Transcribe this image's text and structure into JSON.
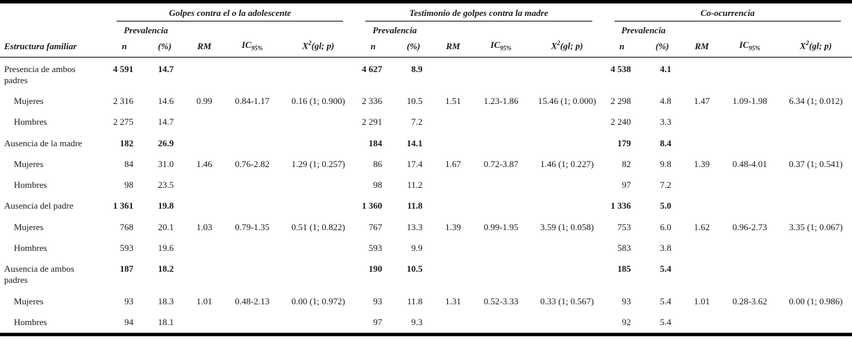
{
  "table": {
    "row_header": "Estructura familiar",
    "groups": [
      {
        "title": "Golpes contra el o la adolescente"
      },
      {
        "title": "Testimonio de golpes contra la madre"
      },
      {
        "title": "Co-ocurrencia"
      }
    ],
    "columns": {
      "prevalencia": "Prevalencia",
      "n": "n",
      "pct": "(%)",
      "rm": "RM",
      "ic": "IC",
      "ic_sub": "95%",
      "x2": "X",
      "x2_sup": "2",
      "x2_tail": "(gl; p)"
    },
    "rows": [
      {
        "label": "Presencia de ambos padres",
        "indent": false,
        "bold": true,
        "cells": [
          [
            "4 591",
            "14.7",
            "",
            "",
            ""
          ],
          [
            "4 627",
            "8.9",
            "",
            "",
            ""
          ],
          [
            "4 538",
            "4.1",
            "",
            "",
            ""
          ]
        ]
      },
      {
        "label": "Mujeres",
        "indent": true,
        "bold": false,
        "cells": [
          [
            "2 316",
            "14.6",
            "0.99",
            "0.84-1.17",
            "0.16 (1; 0.900)"
          ],
          [
            "2 336",
            "10.5",
            "1.51",
            "1.23-1.86",
            "15.46 (1; 0.000)"
          ],
          [
            "2 298",
            "4.8",
            "1.47",
            "1.09-1.98",
            "6.34 (1; 0.012)"
          ]
        ]
      },
      {
        "label": "Hombres",
        "indent": true,
        "bold": false,
        "cells": [
          [
            "2 275",
            "14.7",
            "",
            "",
            ""
          ],
          [
            "2 291",
            "7.2",
            "",
            "",
            ""
          ],
          [
            "2 240",
            "3.3",
            "",
            "",
            ""
          ]
        ]
      },
      {
        "label": "Ausencia de la madre",
        "indent": false,
        "bold": true,
        "cells": [
          [
            "182",
            "26.9",
            "",
            "",
            ""
          ],
          [
            "184",
            "14.1",
            "",
            "",
            ""
          ],
          [
            "179",
            "8.4",
            "",
            "",
            ""
          ]
        ]
      },
      {
        "label": "Mujeres",
        "indent": true,
        "bold": false,
        "cells": [
          [
            "84",
            "31.0",
            "1.46",
            "0.76-2.82",
            "1.29 (1; 0.257)"
          ],
          [
            "86",
            "17.4",
            "1.67",
            "0.72-3.87",
            "1.46 (1; 0.227)"
          ],
          [
            "82",
            "9.8",
            "1.39",
            "0.48-4.01",
            "0.37 (1; 0.541)"
          ]
        ]
      },
      {
        "label": "Hombres",
        "indent": true,
        "bold": false,
        "cells": [
          [
            "98",
            "23.5",
            "",
            "",
            ""
          ],
          [
            "98",
            "11.2",
            "",
            "",
            ""
          ],
          [
            "97",
            "7.2",
            "",
            "",
            ""
          ]
        ]
      },
      {
        "label": "Ausencia del padre",
        "indent": false,
        "bold": true,
        "cells": [
          [
            "1 361",
            "19.8",
            "",
            "",
            ""
          ],
          [
            "1 360",
            "11.8",
            "",
            "",
            ""
          ],
          [
            "1 336",
            "5.0",
            "",
            "",
            ""
          ]
        ]
      },
      {
        "label": "Mujeres",
        "indent": true,
        "bold": false,
        "cells": [
          [
            "768",
            "20.1",
            "1.03",
            "0.79-1.35",
            "0.51 (1; 0.822)"
          ],
          [
            "767",
            "13.3",
            "1.39",
            "0.99-1.95",
            "3.59 (1; 0.058)"
          ],
          [
            "753",
            "6.0",
            "1.62",
            "0.96-2.73",
            "3.35 (1; 0.067)"
          ]
        ]
      },
      {
        "label": "Hombres",
        "indent": true,
        "bold": false,
        "cells": [
          [
            "593",
            "19.6",
            "",
            "",
            ""
          ],
          [
            "593",
            "9.9",
            "",
            "",
            ""
          ],
          [
            "583",
            "3.8",
            "",
            "",
            ""
          ]
        ]
      },
      {
        "label": "Ausencia de ambos padres",
        "indent": false,
        "bold": true,
        "cells": [
          [
            "187",
            "18.2",
            "",
            "",
            ""
          ],
          [
            "190",
            "10.5",
            "",
            "",
            ""
          ],
          [
            "185",
            "5.4",
            "",
            "",
            ""
          ]
        ]
      },
      {
        "label": "Mujeres",
        "indent": true,
        "bold": false,
        "cells": [
          [
            "93",
            "18.3",
            "1.01",
            "0.48-2.13",
            "0.00 (1; 0.972)"
          ],
          [
            "93",
            "11.8",
            "1.31",
            "0.52-3.33",
            "0.33 (1; 0.567)"
          ],
          [
            "93",
            "5.4",
            "1.01",
            "0.28-3.62",
            "0.00 (1; 0.986)"
          ]
        ]
      },
      {
        "label": "Hombres",
        "indent": true,
        "bold": false,
        "cells": [
          [
            "94",
            "18.1",
            "",
            "",
            ""
          ],
          [
            "97",
            "9.3",
            "",
            "",
            ""
          ],
          [
            "92",
            "5.4",
            "",
            "",
            ""
          ]
        ]
      }
    ],
    "colors": {
      "rule": "#000000",
      "text": "#1a1a1a",
      "background": "#ffffff"
    }
  }
}
